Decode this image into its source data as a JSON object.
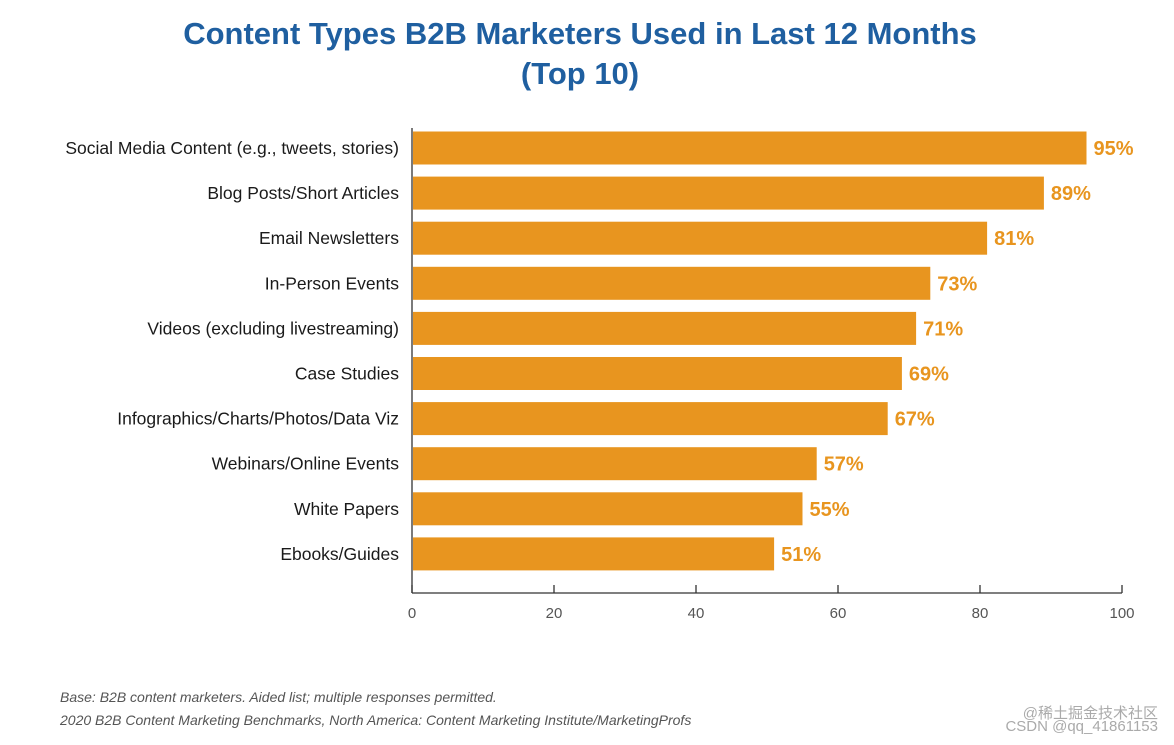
{
  "chart_data": {
    "type": "bar",
    "orientation": "horizontal",
    "title_line1": "Content Types B2B Marketers Used in Last 12 Months",
    "title_line2": "(Top 10)",
    "categories": [
      "Social Media Content (e.g., tweets, stories)",
      "Blog Posts/Short Articles",
      "Email Newsletters",
      "In-Person Events",
      "Videos (excluding livestreaming)",
      "Case Studies",
      "Infographics/Charts/Photos/Data Viz",
      "Webinars/Online Events",
      "White Papers",
      "Ebooks/Guides"
    ],
    "values": [
      95,
      89,
      81,
      73,
      71,
      69,
      67,
      57,
      55,
      51
    ],
    "data_labels": [
      "95%",
      "89%",
      "81%",
      "73%",
      "71%",
      "69%",
      "67%",
      "57%",
      "55%",
      "51%"
    ],
    "xlim": [
      0,
      100
    ],
    "xticks": [
      0,
      20,
      40,
      60,
      80,
      100
    ],
    "xlabel": "",
    "ylabel": "",
    "grid": false,
    "bar_color": "#e8951f",
    "label_color": "#e8951f"
  },
  "footnotes": {
    "base": "Base: B2B content marketers. Aided list; multiple responses permitted.",
    "source": "2020 B2B Content Marketing Benchmarks, North America: Content Marketing Institute/MarketingProfs"
  },
  "watermarks": {
    "line1": "@稀土掘金技术社区",
    "line2": "CSDN @qq_41861153"
  },
  "colors": {
    "title": "#1f5fa0",
    "axis": "#333333",
    "text": "#1a1a1a"
  }
}
